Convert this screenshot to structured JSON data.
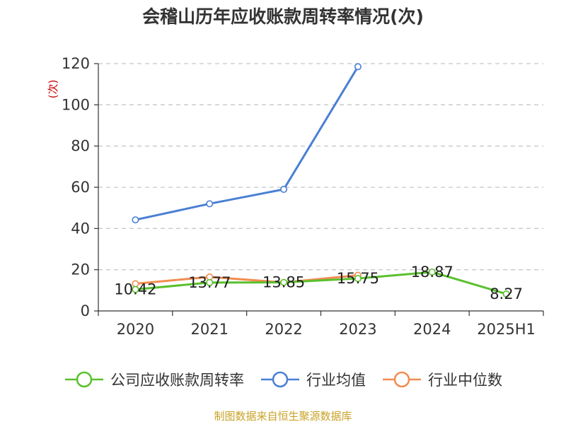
{
  "title": "会稽山历年应收账款周转率情况(次)",
  "source": "制图数据来自恒生聚源数据库",
  "chart_data": {
    "type": "line",
    "title": "会稽山历年应收账款周转率情况(次)",
    "ylabel": "(次)",
    "xlabel": "",
    "categories": [
      "2020",
      "2021",
      "2022",
      "2023",
      "2024",
      "2025H1"
    ],
    "ylim": [
      0,
      120
    ],
    "yticks": [
      0,
      20,
      40,
      60,
      80,
      100,
      120
    ],
    "grid": true,
    "legend_position": "bottom",
    "series": [
      {
        "name": "公司应收账款周转率",
        "color": "#5ac02d",
        "values": [
          10.42,
          13.77,
          13.85,
          15.75,
          18.87,
          8.27
        ],
        "labels": [
          "10.42",
          "13.77",
          "13.85",
          "15.75",
          "18.87",
          "8.27"
        ]
      },
      {
        "name": "行业均值",
        "color": "#4a7fd4",
        "values": [
          44.2,
          52.0,
          59.0,
          118.5,
          null,
          null
        ]
      },
      {
        "name": "行业中位数",
        "color": "#f28c50",
        "values": [
          13.2,
          16.5,
          13.8,
          17.3,
          null,
          null
        ]
      }
    ]
  }
}
